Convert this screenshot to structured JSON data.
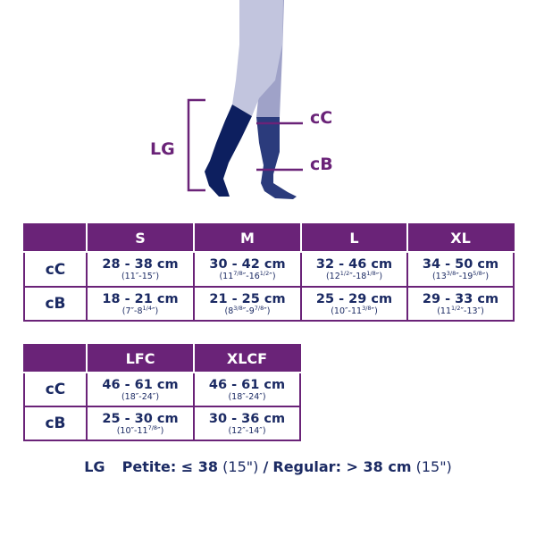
{
  "illustration": {
    "lg_label": "LG",
    "cc_label": "cC",
    "cb_label": "cB",
    "colors": {
      "leg_front": "#c2c5de",
      "leg_back": "#9fa2c8",
      "sock_front": "#0d1f5f",
      "sock_back": "#2b3b7c",
      "accent": "#6a2378"
    }
  },
  "table1": {
    "headers": [
      "",
      "S",
      "M",
      "L",
      "XL"
    ],
    "rows": [
      {
        "label": "cC",
        "cells": [
          {
            "cm": "28 - 38 cm",
            "in": [
              [
                "11",
                ""
              ],
              [
                "15",
                ""
              ]
            ]
          },
          {
            "cm": "30 - 42 cm",
            "in": [
              [
                "11",
                "7/8"
              ],
              [
                "16",
                "1/2"
              ]
            ]
          },
          {
            "cm": "32 - 46 cm",
            "in": [
              [
                "12",
                "1/2"
              ],
              [
                "18",
                "1/8"
              ]
            ]
          },
          {
            "cm": "34 - 50 cm",
            "in": [
              [
                "13",
                "3/8"
              ],
              [
                "19",
                "5/8"
              ]
            ]
          }
        ]
      },
      {
        "label": "cB",
        "cells": [
          {
            "cm": "18 - 21 cm",
            "in": [
              [
                "7",
                ""
              ],
              [
                "8",
                "1/4"
              ]
            ]
          },
          {
            "cm": "21 - 25 cm",
            "in": [
              [
                "8",
                "3/8"
              ],
              [
                "9",
                "7/8"
              ]
            ]
          },
          {
            "cm": "25 - 29 cm",
            "in": [
              [
                "10",
                ""
              ],
              [
                "11",
                "3/8"
              ]
            ]
          },
          {
            "cm": "29 - 33 cm",
            "in": [
              [
                "11",
                "1/2"
              ],
              [
                "13",
                ""
              ]
            ]
          }
        ]
      }
    ]
  },
  "table2": {
    "headers": [
      "",
      "LFC",
      "XLCF"
    ],
    "rows": [
      {
        "label": "cC",
        "cells": [
          {
            "cm": "46 - 61 cm",
            "in": [
              [
                "18",
                ""
              ],
              [
                "24",
                ""
              ]
            ]
          },
          {
            "cm": "46 - 61 cm",
            "in": [
              [
                "18",
                ""
              ],
              [
                "24",
                ""
              ]
            ]
          }
        ]
      },
      {
        "label": "cB",
        "cells": [
          {
            "cm": "25 - 30 cm",
            "in": [
              [
                "10",
                ""
              ],
              [
                "11",
                "7/8"
              ]
            ]
          },
          {
            "cm": "30 - 36 cm",
            "in": [
              [
                "12",
                ""
              ],
              [
                "14",
                ""
              ]
            ]
          }
        ]
      }
    ]
  },
  "note": {
    "lg": "LG",
    "petite_label": "Petite: ≤ 38",
    "petite_in": "(15\")",
    "separator": "/",
    "regular_label": "Regular: > 38 cm",
    "regular_in": "(15\")"
  }
}
